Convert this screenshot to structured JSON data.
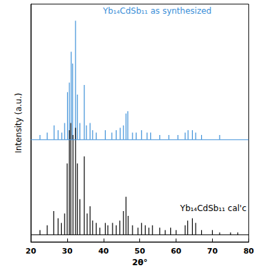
{
  "chart_data": {
    "type": "stick",
    "x_label": "2θ°",
    "y_label": "Intensity (a.u.)",
    "xlim": [
      20,
      80
    ],
    "xticks": [
      20,
      30,
      40,
      50,
      60,
      70,
      80
    ],
    "ylim": [
      0,
      1
    ],
    "tick_labels": "x",
    "series": [
      {
        "name": "Yb₁₄CdSb₁₁ as synthesized",
        "color": "#3b8fd8",
        "baseline": 0.43,
        "x": [
          22.5,
          24.5,
          26.4,
          27.5,
          28.5,
          29.3,
          30.1,
          30.6,
          31.1,
          31.5,
          32.3,
          32.8,
          33.5,
          34.7,
          35.3,
          36.3,
          37.0,
          38.0,
          40.5,
          42.3,
          43.5,
          44.6,
          45.5,
          46.2,
          46.7,
          48.0,
          49.0,
          50.5,
          52.0,
          53.0,
          55.5,
          58.0,
          60.5,
          62.5,
          63.3,
          64.5,
          65.4,
          67.0,
          72.0
        ],
        "values": [
          0.45,
          0.46,
          0.49,
          0.47,
          0.46,
          0.5,
          0.63,
          0.67,
          0.8,
          0.75,
          0.93,
          0.62,
          0.5,
          0.66,
          0.49,
          0.5,
          0.47,
          0.46,
          0.47,
          0.46,
          0.47,
          0.48,
          0.49,
          0.54,
          0.55,
          0.46,
          0.46,
          0.47,
          0.46,
          0.46,
          0.45,
          0.45,
          0.45,
          0.46,
          0.47,
          0.47,
          0.46,
          0.45,
          0.45
        ]
      },
      {
        "name": "Yb₁₄CdSb₁₁ cal'c",
        "color": "#000000",
        "baseline": 0.03,
        "x": [
          22.5,
          24.5,
          26.3,
          27.5,
          28.4,
          29.3,
          30.0,
          30.6,
          31.0,
          31.6,
          32.3,
          32.8,
          33.5,
          34.7,
          35.5,
          36.3,
          37.0,
          38.0,
          39.0,
          40.5,
          41.2,
          42.5,
          43.5,
          44.5,
          45.5,
          46.2,
          46.8,
          48.0,
          49.5,
          50.5,
          51.5,
          52.5,
          53.5,
          55.5,
          57.0,
          58.5,
          60.0,
          62.5,
          63.2,
          64.5,
          65.4,
          67.0,
          70.0,
          72.0,
          75.0,
          77.0
        ],
        "values": [
          0.05,
          0.07,
          0.13,
          0.1,
          0.08,
          0.12,
          0.33,
          0.47,
          0.5,
          0.45,
          0.48,
          0.33,
          0.18,
          0.36,
          0.12,
          0.15,
          0.09,
          0.08,
          0.06,
          0.08,
          0.07,
          0.08,
          0.07,
          0.09,
          0.13,
          0.19,
          0.11,
          0.07,
          0.06,
          0.08,
          0.07,
          0.06,
          0.07,
          0.06,
          0.05,
          0.06,
          0.05,
          0.07,
          0.09,
          0.1,
          0.08,
          0.05,
          0.05,
          0.04,
          0.04,
          0.04
        ]
      }
    ]
  }
}
